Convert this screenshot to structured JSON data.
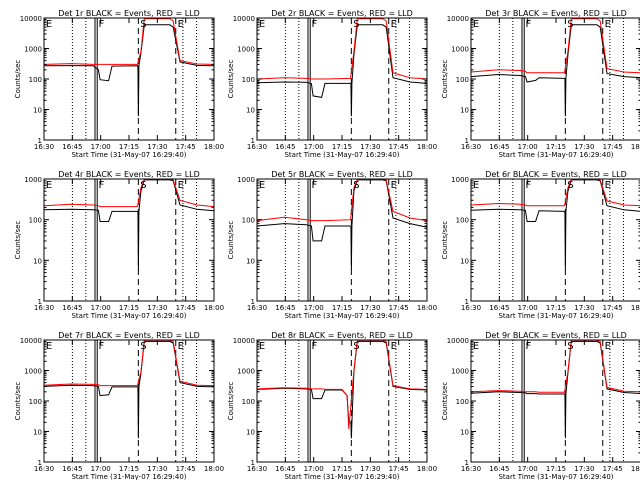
{
  "figure": {
    "colors": {
      "events": "#000000",
      "lld": "#ff0000",
      "axes": "#000000",
      "background": "#ffffff"
    },
    "y_axis_label": "Counts/sec",
    "x_axis_label": "Start Time (31-May-07 16:29:40)",
    "x_tick_labels": [
      "16:30",
      "16:45",
      "17:00",
      "17:15",
      "17:30",
      "17:45",
      "18:00"
    ],
    "x_range_minutes": [
      0,
      100
    ],
    "time_markers": {
      "dotted_minutes": [
        16.7,
        24.6,
        81.7,
        89.7
      ],
      "solid_minutes": [
        30.0,
        31.3
      ],
      "dashed_minutes": [
        55.5,
        77.5
      ],
      "flag_letters": [
        {
          "text": "E",
          "minute": 0.5
        },
        {
          "text": "F",
          "minute": 31.5
        },
        {
          "text": "S",
          "minute": 56.0
        },
        {
          "text": "E",
          "minute": 78.0
        }
      ]
    }
  },
  "chart_data": [
    {
      "type": "line",
      "title": "Det 1r BLACK = Events, RED = LLD",
      "ylim": [
        1,
        10000
      ],
      "yscale": "log",
      "yticks": [
        1,
        10,
        100,
        1000,
        10000
      ],
      "ytick_labels": [
        "1",
        "10",
        "100",
        "1000",
        "10000"
      ],
      "x": [
        0,
        16,
        29,
        32,
        33,
        38,
        40,
        55,
        57,
        59,
        74,
        76,
        80,
        90,
        100
      ],
      "series": [
        {
          "name": "Events",
          "color": "#000000",
          "values": [
            270,
            275,
            272,
            200,
            95,
            88,
            265,
            270,
            700,
            6000,
            6000,
            5000,
            360,
            280,
            270
          ],
          "spike": {
            "minute": 55.5,
            "value": 6
          }
        },
        {
          "name": "LLD",
          "color": "#ff0000",
          "values": [
            300,
            320,
            300,
            300,
            300,
            300,
            300,
            300,
            800,
            9500,
            9500,
            8000,
            400,
            310,
            300
          ]
        }
      ]
    },
    {
      "type": "line",
      "title": "Det 2r BLACK = Events, RED = LLD",
      "ylim": [
        1,
        10000
      ],
      "yscale": "log",
      "yticks": [
        1,
        10,
        100,
        1000,
        10000
      ],
      "ytick_labels": [
        "1",
        "10",
        "100",
        "1000",
        "10000"
      ],
      "x": [
        0,
        16,
        29,
        32,
        33,
        38,
        40,
        55,
        57,
        59,
        74,
        76,
        80,
        90,
        100
      ],
      "series": [
        {
          "name": "Events",
          "color": "#000000",
          "values": [
            75,
            80,
            78,
            70,
            28,
            25,
            72,
            72,
            600,
            6000,
            6000,
            5000,
            110,
            80,
            72
          ],
          "spike": {
            "minute": 55.5,
            "value": 6
          }
        },
        {
          "name": "LLD",
          "color": "#ff0000",
          "values": [
            100,
            110,
            105,
            100,
            100,
            100,
            100,
            105,
            800,
            9500,
            9500,
            8000,
            160,
            110,
            100
          ]
        }
      ]
    },
    {
      "type": "line",
      "title": "Det 3r BLACK = Events, RED = LLD",
      "ylim": [
        1,
        10000
      ],
      "yscale": "log",
      "yticks": [
        1,
        10,
        100,
        1000,
        10000
      ],
      "ytick_labels": [
        "1",
        "10",
        "100",
        "1000",
        "10000"
      ],
      "x": [
        0,
        16,
        29,
        32,
        33,
        38,
        40,
        55,
        57,
        59,
        74,
        76,
        80,
        90,
        100
      ],
      "series": [
        {
          "name": "Events",
          "color": "#000000",
          "values": [
            120,
            140,
            130,
            120,
            80,
            90,
            110,
            105,
            600,
            6000,
            6000,
            5000,
            150,
            120,
            110
          ],
          "spike": {
            "minute": 55.5,
            "value": 6
          }
        },
        {
          "name": "LLD",
          "color": "#ff0000",
          "values": [
            170,
            200,
            190,
            180,
            160,
            160,
            160,
            160,
            800,
            9500,
            9500,
            8000,
            220,
            170,
            160
          ]
        }
      ]
    },
    {
      "type": "line",
      "title": "Det 4r BLACK = Events, RED = LLD",
      "ylim": [
        1,
        1000
      ],
      "yscale": "log",
      "yticks": [
        1,
        10,
        100,
        1000
      ],
      "ytick_labels": [
        "1",
        "10",
        "100",
        "1000"
      ],
      "x": [
        0,
        16,
        29,
        32,
        33,
        38,
        40,
        55,
        57,
        59,
        74,
        76,
        80,
        90,
        100
      ],
      "series": [
        {
          "name": "Events",
          "color": "#000000",
          "values": [
            175,
            180,
            175,
            170,
            90,
            90,
            160,
            160,
            500,
            950,
            950,
            900,
            230,
            180,
            165
          ],
          "spike": {
            "minute": 55.5,
            "value": 6
          }
        },
        {
          "name": "LLD",
          "color": "#ff0000",
          "values": [
            220,
            240,
            230,
            220,
            210,
            210,
            210,
            210,
            600,
            980,
            980,
            950,
            300,
            230,
            210
          ]
        }
      ]
    },
    {
      "type": "line",
      "title": "Det 5r BLACK = Events, RED = LLD",
      "ylim": [
        1,
        1000
      ],
      "yscale": "log",
      "yticks": [
        1,
        10,
        100,
        1000
      ],
      "ytick_labels": [
        "1",
        "10",
        "100",
        "1000"
      ],
      "x": [
        0,
        16,
        29,
        32,
        33,
        38,
        40,
        55,
        57,
        59,
        74,
        76,
        80,
        90,
        100
      ],
      "series": [
        {
          "name": "Events",
          "color": "#000000",
          "values": [
            70,
            80,
            75,
            70,
            30,
            30,
            70,
            70,
            500,
            950,
            950,
            900,
            110,
            80,
            65
          ],
          "spike": {
            "minute": 55.5,
            "value": 6
          }
        },
        {
          "name": "LLD",
          "color": "#ff0000",
          "values": [
            95,
            115,
            100,
            95,
            95,
            95,
            95,
            100,
            600,
            980,
            980,
            950,
            160,
            110,
            95
          ]
        }
      ]
    },
    {
      "type": "line",
      "title": "Det 6r BLACK = Events, RED = LLD",
      "ylim": [
        1,
        1000
      ],
      "yscale": "log",
      "yticks": [
        1,
        10,
        100,
        1000
      ],
      "ytick_labels": [
        "1",
        "10",
        "100",
        "1000"
      ],
      "x": [
        0,
        16,
        29,
        32,
        33,
        38,
        40,
        55,
        57,
        59,
        74,
        76,
        80,
        90,
        100
      ],
      "series": [
        {
          "name": "Events",
          "color": "#000000",
          "values": [
            170,
            180,
            175,
            170,
            90,
            90,
            165,
            160,
            500,
            950,
            950,
            900,
            220,
            175,
            160
          ],
          "spike": {
            "minute": 55.5,
            "value": 6
          }
        },
        {
          "name": "LLD",
          "color": "#ff0000",
          "values": [
            230,
            250,
            240,
            230,
            220,
            220,
            220,
            220,
            600,
            980,
            980,
            950,
            290,
            230,
            220
          ]
        }
      ]
    },
    {
      "type": "line",
      "title": "Det 7r BLACK = Events, RED = LLD",
      "ylim": [
        1,
        10000
      ],
      "yscale": "log",
      "yticks": [
        1,
        10,
        100,
        1000,
        10000
      ],
      "ytick_labels": [
        "1",
        "10",
        "100",
        "1000",
        "10000"
      ],
      "x": [
        0,
        16,
        29,
        32,
        33,
        38,
        40,
        55,
        57,
        59,
        74,
        76,
        80,
        90,
        100
      ],
      "series": [
        {
          "name": "Events",
          "color": "#000000",
          "values": [
            300,
            330,
            320,
            300,
            150,
            160,
            290,
            290,
            800,
            9000,
            9000,
            8000,
            400,
            300,
            290
          ],
          "spike": {
            "minute": 55.5,
            "value": 6
          }
        },
        {
          "name": "LLD",
          "color": "#ff0000",
          "values": [
            330,
            360,
            350,
            340,
            320,
            320,
            320,
            320,
            900,
            9800,
            9800,
            9000,
            450,
            330,
            320
          ]
        }
      ]
    },
    {
      "type": "line",
      "title": "Det 8r BLACK = Events, RED = LLD",
      "ylim": [
        1,
        10000
      ],
      "yscale": "log",
      "yticks": [
        1,
        10,
        100,
        1000,
        10000
      ],
      "ytick_labels": [
        "1",
        "10",
        "100",
        "1000",
        "10000"
      ],
      "x": [
        0,
        16,
        29,
        32,
        33,
        38,
        40,
        50,
        53,
        54,
        57,
        59,
        74,
        76,
        80,
        90,
        100
      ],
      "series": [
        {
          "name": "Events",
          "color": "#000000",
          "values": [
            240,
            260,
            250,
            240,
            120,
            120,
            230,
            230,
            150,
            20,
            900,
            9000,
            9000,
            8000,
            300,
            240,
            230
          ],
          "spike": {
            "minute": 55.5,
            "value": 6
          }
        },
        {
          "name": "LLD",
          "color": "#ff0000",
          "values": [
            250,
            270,
            260,
            250,
            250,
            250,
            240,
            240,
            150,
            12,
            1000,
            9800,
            9800,
            9000,
            320,
            250,
            240
          ]
        }
      ]
    },
    {
      "type": "line",
      "title": "Det 9r BLACK = Events, RED = LLD",
      "ylim": [
        1,
        10000
      ],
      "yscale": "log",
      "yticks": [
        1,
        10,
        100,
        1000,
        10000
      ],
      "ytick_labels": [
        "1",
        "10",
        "100",
        "1000",
        "10000"
      ],
      "x": [
        0,
        16,
        29,
        32,
        33,
        38,
        40,
        55,
        57,
        59,
        74,
        76,
        80,
        90,
        100
      ],
      "series": [
        {
          "name": "Events",
          "color": "#000000",
          "values": [
            180,
            200,
            190,
            185,
            175,
            175,
            170,
            170,
            800,
            9000,
            9000,
            8000,
            250,
            190,
            175
          ],
          "spike": {
            "minute": 55.5,
            "value": 6
          }
        },
        {
          "name": "LLD",
          "color": "#ff0000",
          "values": [
            200,
            220,
            210,
            200,
            200,
            200,
            195,
            195,
            900,
            9800,
            9800,
            9000,
            280,
            210,
            200
          ]
        }
      ]
    }
  ]
}
